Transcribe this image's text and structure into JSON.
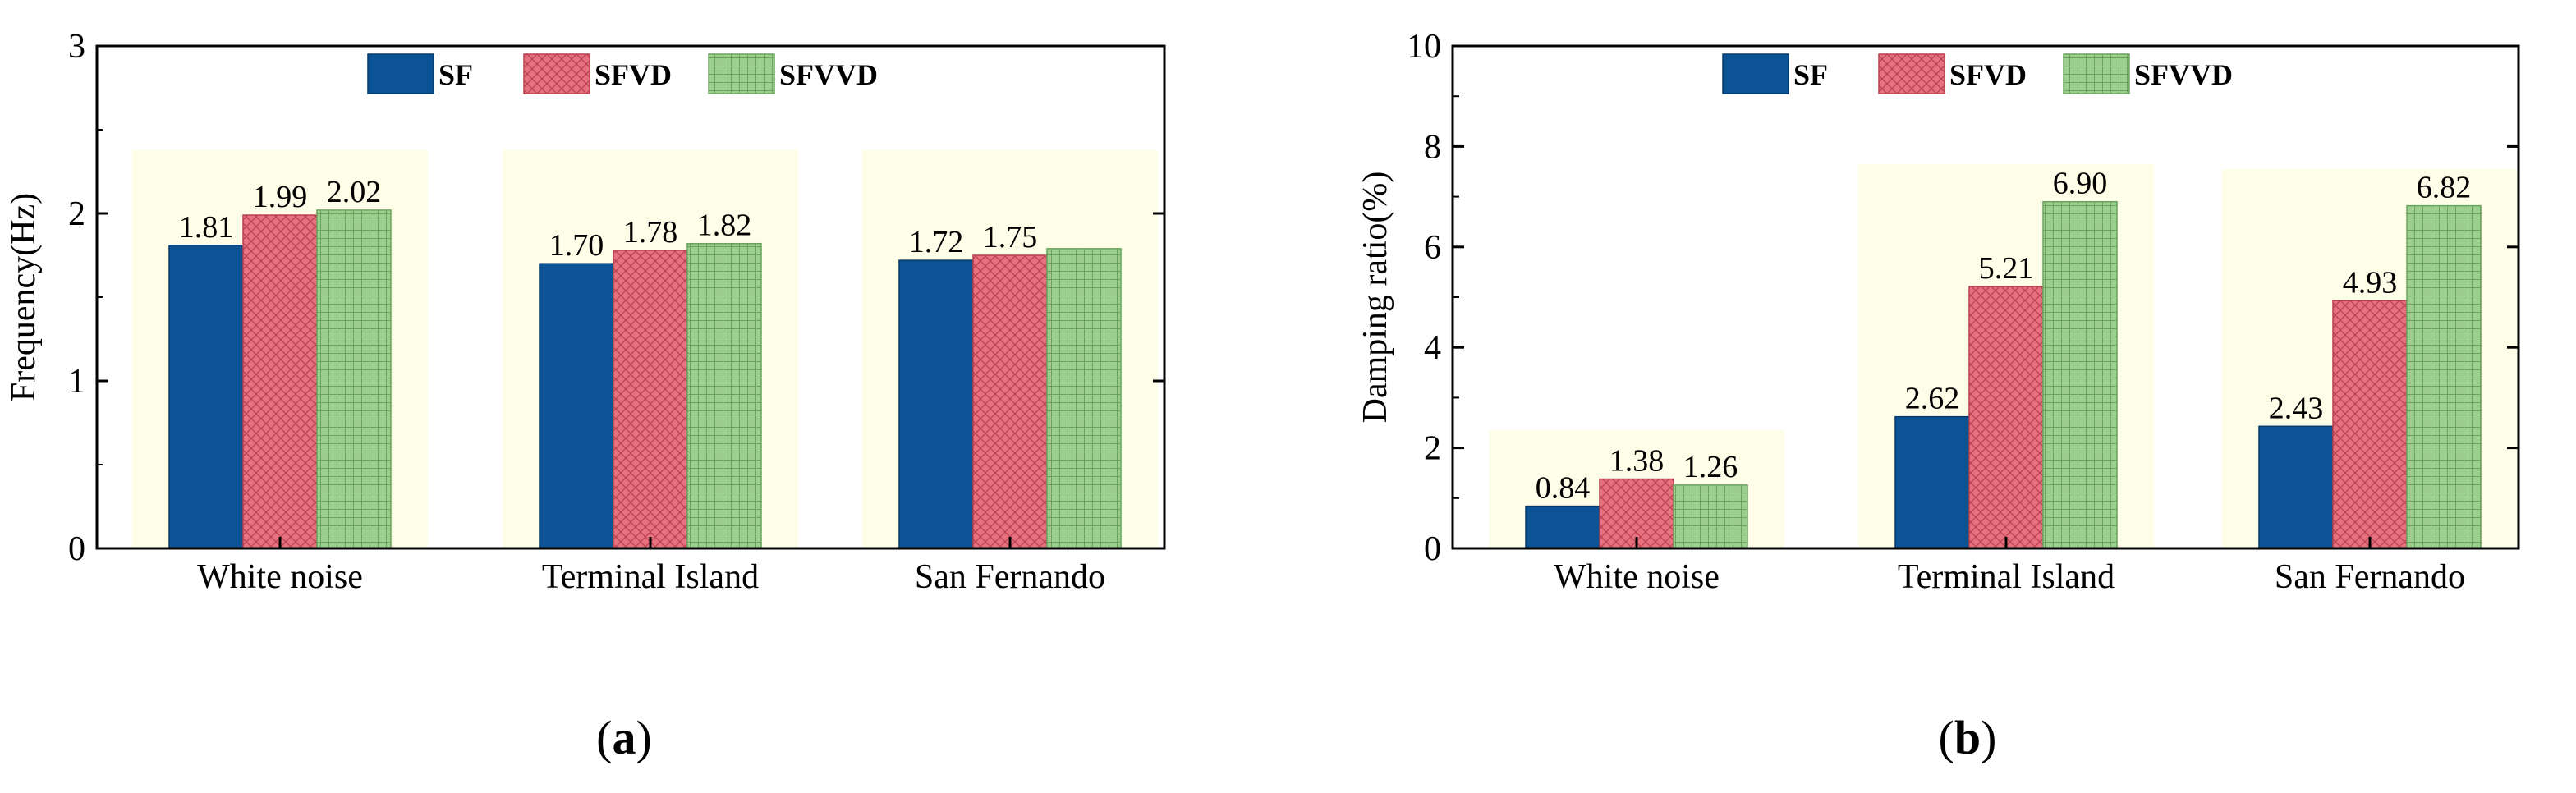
{
  "figure": {
    "panel_labels": [
      "a",
      "b"
    ]
  },
  "colors": {
    "sf": "#0b5394",
    "sfvd": "#e8717f",
    "sfvvd": "#9ccf8f",
    "group_highlight": "#fdfde8",
    "axis": "#000000"
  },
  "chart_data": [
    {
      "type": "bar",
      "panel": "a",
      "title": "",
      "xlabel": "",
      "ylabel": "Frequency(Hz)",
      "ylim": [
        0,
        3
      ],
      "yticks": [
        0,
        1,
        2,
        3
      ],
      "ytick_labels": [
        "0",
        "1",
        "2",
        "3"
      ],
      "grid": false,
      "legend_position": "top-center",
      "categories": [
        "White noise",
        "Terminal Island",
        "San Fernando"
      ],
      "series": [
        {
          "name": "SF",
          "color_key": "sf",
          "values": [
            1.81,
            1.7,
            1.72
          ],
          "labels": [
            "1.81",
            "1.70",
            "1.72"
          ]
        },
        {
          "name": "SFVD",
          "color_key": "sfvd",
          "values": [
            1.99,
            1.78,
            1.75
          ],
          "labels": [
            "1.99",
            "1.78",
            "1.75"
          ]
        },
        {
          "name": "SFVVD",
          "color_key": "sfvvd",
          "values": [
            2.02,
            1.82,
            1.79
          ],
          "labels": [
            "2.02",
            "1.82",
            ""
          ]
        }
      ],
      "highlight_top": [
        2.38,
        2.38,
        2.38
      ]
    },
    {
      "type": "bar",
      "panel": "b",
      "title": "",
      "xlabel": "",
      "ylabel": "Damping ratio(%)",
      "ylim": [
        0,
        10
      ],
      "yticks": [
        0,
        2,
        4,
        6,
        8,
        10
      ],
      "ytick_labels": [
        "0",
        "2",
        "4",
        "6",
        "8",
        "10"
      ],
      "grid": false,
      "legend_position": "top-center",
      "categories": [
        "White noise",
        "Terminal Island",
        "San Fernando"
      ],
      "series": [
        {
          "name": "SF",
          "color_key": "sf",
          "values": [
            0.84,
            2.62,
            2.43
          ],
          "labels": [
            "0.84",
            "2.62",
            "2.43"
          ]
        },
        {
          "name": "SFVD",
          "color_key": "sfvd",
          "values": [
            1.38,
            5.21,
            4.93
          ],
          "labels": [
            "1.38",
            "5.21",
            "4.93"
          ]
        },
        {
          "name": "SFVVD",
          "color_key": "sfvvd",
          "values": [
            1.26,
            6.9,
            6.82
          ],
          "labels": [
            "1.26",
            "6.90",
            "6.82"
          ]
        }
      ],
      "highlight_top": [
        2.35,
        7.65,
        7.55
      ]
    }
  ]
}
